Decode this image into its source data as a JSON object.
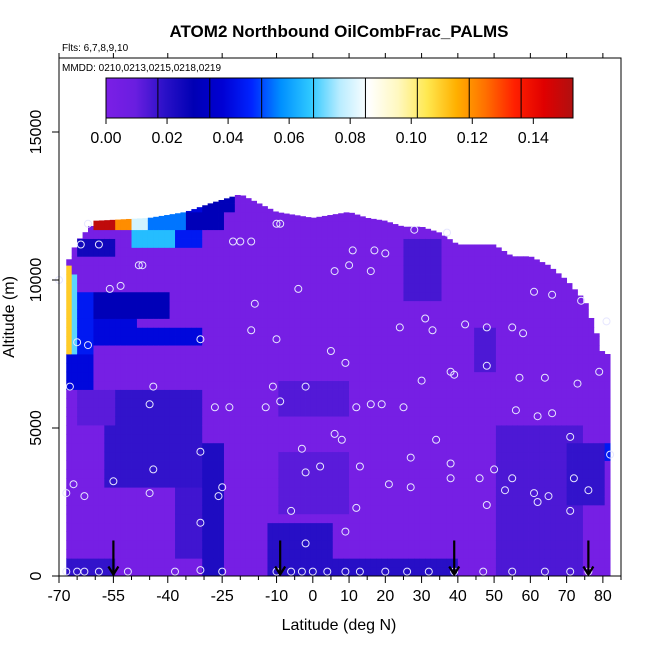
{
  "chart_data": {
    "type": "heatmap",
    "title": "ATOM2 Northbound OilCombFrac_PALMS",
    "flights_label": "Flts: 6,7,8,9,10",
    "dates_label": "MMDD: 0210,0213,0215,0218,0219",
    "xlabel": "Latitude (deg N)",
    "ylabel": "Altitude (m)",
    "xlim": [
      -70,
      85
    ],
    "ylim": [
      0,
      17500
    ],
    "x_ticks": [
      -70,
      -55,
      -40,
      -25,
      -10,
      0,
      10,
      20,
      30,
      40,
      50,
      60,
      70,
      80
    ],
    "x_tick_labels": [
      "-70",
      "-55",
      "-40",
      "-25",
      "-10",
      "0",
      "10",
      "20",
      "30",
      "40",
      "50",
      "60",
      "70",
      "80"
    ],
    "x_minor_ticks": [
      -65,
      -60,
      -50,
      -45,
      -35,
      -30,
      -20,
      -15,
      -5,
      5,
      15,
      25,
      35,
      45,
      55,
      65,
      75,
      85
    ],
    "y_ticks": [
      0,
      5000,
      10000,
      15000
    ],
    "y_tick_labels": [
      "0",
      "5000",
      "10000",
      "15000"
    ],
    "colorbar": {
      "range": [
        0,
        0.153
      ],
      "ticks": [
        0.0,
        0.02,
        0.04,
        0.06,
        0.08,
        0.1,
        0.12,
        0.14
      ],
      "tick_labels": [
        "0.00",
        "0.02",
        "0.04",
        "0.06",
        "0.08",
        "0.10",
        "0.12",
        "0.14"
      ],
      "colors": [
        "#7b1fe6",
        "#6a1ee0",
        "#2b11c8",
        "#0000b4",
        "#0000d4",
        "#0024ff",
        "#0090ff",
        "#2ec8ff",
        "#b8ecff",
        "#ffffff",
        "#fff8c0",
        "#ffe850",
        "#ffb000",
        "#ff7000",
        "#ff2000",
        "#e00000",
        "#b01010"
      ],
      "divider_values": [
        0.017,
        0.034,
        0.051,
        0.068,
        0.085,
        0.102,
        0.119,
        0.136
      ]
    },
    "grid": false,
    "coverage_top_alt": [
      [
        -68,
        10500
      ],
      [
        -65,
        11300
      ],
      [
        -60,
        12000
      ],
      [
        -45,
        12100
      ],
      [
        -35,
        12300
      ],
      [
        -28,
        12600
      ],
      [
        -20,
        12900
      ],
      [
        -10,
        12300
      ],
      [
        0,
        12100
      ],
      [
        10,
        12300
      ],
      [
        15,
        12100
      ],
      [
        20,
        12000
      ],
      [
        25,
        11800
      ],
      [
        30,
        11800
      ],
      [
        35,
        11600
      ],
      [
        40,
        11200
      ],
      [
        45,
        11200
      ],
      [
        50,
        11200
      ],
      [
        55,
        10800
      ],
      [
        60,
        10800
      ],
      [
        65,
        10500
      ],
      [
        70,
        10000
      ],
      [
        75,
        9300
      ],
      [
        78,
        8300
      ],
      [
        80,
        7500
      ]
    ],
    "background_value": 0.003,
    "features": [
      {
        "x": [
          -68,
          -67
        ],
        "y": [
          7000,
          10500
        ],
        "value": 0.11
      },
      {
        "x": [
          -67,
          -65
        ],
        "y": [
          7500,
          10200
        ],
        "value": 0.07
      },
      {
        "x": [
          -65,
          -60
        ],
        "y": [
          7600,
          9500
        ],
        "value": 0.045
      },
      {
        "x": [
          -68,
          -60
        ],
        "y": [
          6400,
          7600
        ],
        "value": 0.04
      },
      {
        "x": [
          -60,
          -48
        ],
        "y": [
          7700,
          8600
        ],
        "value": 0.04
      },
      {
        "x": [
          -60,
          -40
        ],
        "y": [
          8600,
          9700
        ],
        "value": 0.03
      },
      {
        "x": [
          -48,
          -30
        ],
        "y": [
          7700,
          8400
        ],
        "value": 0.04
      },
      {
        "x": [
          -65,
          -55
        ],
        "y": [
          10700,
          11300
        ],
        "value": 0.025
      },
      {
        "x": [
          -60,
          -55
        ],
        "y": [
          11800,
          12300
        ],
        "value": 0.15
      },
      {
        "x": [
          -55,
          -50
        ],
        "y": [
          11800,
          12300
        ],
        "value": 0.12
      },
      {
        "x": [
          -50,
          -45
        ],
        "y": [
          11800,
          12300
        ],
        "value": 0.08
      },
      {
        "x": [
          -45,
          -35
        ],
        "y": [
          11800,
          12300
        ],
        "value": 0.055
      },
      {
        "x": [
          -35,
          -25
        ],
        "y": [
          11800,
          12300
        ],
        "value": 0.03
      },
      {
        "x": [
          -50,
          -38
        ],
        "y": [
          11100,
          11700
        ],
        "value": 0.065
      },
      {
        "x": [
          -38,
          -30
        ],
        "y": [
          11100,
          11700
        ],
        "value": 0.045
      },
      {
        "x": [
          -40,
          -30
        ],
        "y": [
          12300,
          12600
        ],
        "value": 0.04
      },
      {
        "x": [
          -30,
          -22
        ],
        "y": [
          12400,
          12800
        ],
        "value": 0.03
      },
      {
        "x": [
          -58,
          -30
        ],
        "y": [
          3000,
          6400
        ],
        "value": 0.018
      },
      {
        "x": [
          -38,
          -30
        ],
        "y": [
          500,
          3000
        ],
        "value": 0.016
      },
      {
        "x": [
          -30,
          -25
        ],
        "y": [
          0,
          4500
        ],
        "value": 0.022
      },
      {
        "x": [
          -70,
          -55
        ],
        "y": [
          0,
          600
        ],
        "value": 0.018
      },
      {
        "x": [
          -12,
          5
        ],
        "y": [
          0,
          1800
        ],
        "value": 0.02
      },
      {
        "x": [
          5,
          40
        ],
        "y": [
          0,
          700
        ],
        "value": 0.02
      },
      {
        "x": [
          -10,
          10
        ],
        "y": [
          2000,
          4200
        ],
        "value": 0.012
      },
      {
        "x": [
          25,
          35
        ],
        "y": [
          9300,
          11500
        ],
        "value": 0.015
      },
      {
        "x": [
          45,
          50
        ],
        "y": [
          7000,
          8500
        ],
        "value": 0.014
      },
      {
        "x": [
          50,
          75
        ],
        "y": [
          0,
          5000
        ],
        "value": 0.014
      },
      {
        "x": [
          -10,
          10
        ],
        "y": [
          5500,
          6500
        ],
        "value": 0.013
      },
      {
        "x": [
          -65,
          -55
        ],
        "y": [
          5000,
          6400
        ],
        "value": 0.012
      },
      {
        "x": [
          70,
          80
        ],
        "y": [
          2500,
          4500
        ],
        "value": 0.018
      },
      {
        "x": [
          80,
          82
        ],
        "y": [
          3800,
          4600
        ],
        "value": 0.045
      }
    ],
    "sample_points": [
      [
        -68,
        150
      ],
      [
        -65,
        150
      ],
      [
        -63,
        150
      ],
      [
        -59,
        150
      ],
      [
        -51,
        150
      ],
      [
        -38,
        150
      ],
      [
        -31,
        200
      ],
      [
        -31,
        1800
      ],
      [
        -25,
        150
      ],
      [
        -10,
        150
      ],
      [
        -6,
        150
      ],
      [
        -3,
        150
      ],
      [
        0,
        150
      ],
      [
        4,
        150
      ],
      [
        9,
        150
      ],
      [
        13,
        150
      ],
      [
        20,
        150
      ],
      [
        26,
        150
      ],
      [
        32,
        150
      ],
      [
        39,
        150
      ],
      [
        47,
        150
      ],
      [
        55,
        150
      ],
      [
        64,
        150
      ],
      [
        71,
        150
      ],
      [
        76,
        150
      ],
      [
        -68,
        2800
      ],
      [
        -66,
        3100
      ],
      [
        -63,
        2700
      ],
      [
        -55,
        3200
      ],
      [
        -45,
        2800
      ],
      [
        -44,
        3600
      ],
      [
        -45,
        5800
      ],
      [
        -44,
        6400
      ],
      [
        -31,
        4200
      ],
      [
        -25,
        3000
      ],
      [
        -26,
        2700
      ],
      [
        -6,
        2200
      ],
      [
        -3,
        4300
      ],
      [
        -2,
        3500
      ],
      [
        2,
        3700
      ],
      [
        6,
        4800
      ],
      [
        8,
        4600
      ],
      [
        9,
        1500
      ],
      [
        12,
        2300
      ],
      [
        13,
        3700
      ],
      [
        16,
        5800
      ],
      [
        21,
        3100
      ],
      [
        27,
        3000
      ],
      [
        27,
        4000
      ],
      [
        38,
        3800
      ],
      [
        38,
        3300
      ],
      [
        46,
        3300
      ],
      [
        48,
        2400
      ],
      [
        50,
        3600
      ],
      [
        53,
        2900
      ],
      [
        55,
        3300
      ],
      [
        61,
        2800
      ],
      [
        62,
        2500
      ],
      [
        65,
        2700
      ],
      [
        71,
        2200
      ],
      [
        72,
        3300
      ],
      [
        76,
        2900
      ],
      [
        82,
        4100
      ],
      [
        -27,
        5700
      ],
      [
        -23,
        5700
      ],
      [
        -13,
        5700
      ],
      [
        -11,
        6400
      ],
      [
        -9,
        5900
      ],
      [
        -2,
        1100
      ],
      [
        12,
        5700
      ],
      [
        19,
        5800
      ],
      [
        25,
        5700
      ],
      [
        30,
        6600
      ],
      [
        38,
        6900
      ],
      [
        39,
        6800
      ],
      [
        34,
        4600
      ],
      [
        48,
        7100
      ],
      [
        56,
        5600
      ],
      [
        57,
        6700
      ],
      [
        62,
        5400
      ],
      [
        64,
        6700
      ],
      [
        66,
        5500
      ],
      [
        71,
        4700
      ],
      [
        73,
        6500
      ],
      [
        79,
        6900
      ],
      [
        -67,
        6400
      ],
      [
        -65,
        7900
      ],
      [
        -62,
        7800
      ],
      [
        -31,
        8000
      ],
      [
        -17,
        8300
      ],
      [
        -10,
        8000
      ],
      [
        -4,
        9700
      ],
      [
        -2,
        6400
      ],
      [
        5,
        7600
      ],
      [
        9,
        7200
      ],
      [
        6,
        10300
      ],
      [
        10,
        10500
      ],
      [
        11,
        11000
      ],
      [
        16,
        10300
      ],
      [
        17,
        11000
      ],
      [
        20,
        10900
      ],
      [
        24,
        8400
      ],
      [
        28,
        11700
      ],
      [
        31,
        8700
      ],
      [
        33,
        8300
      ],
      [
        37,
        11600
      ],
      [
        42,
        8500
      ],
      [
        48,
        8400
      ],
      [
        55,
        8400
      ],
      [
        58,
        8200
      ],
      [
        61,
        9600
      ],
      [
        66,
        9500
      ],
      [
        74,
        9300
      ],
      [
        81,
        8600
      ],
      [
        -48,
        10500
      ],
      [
        -47,
        10500
      ],
      [
        -56,
        9700
      ],
      [
        -53,
        9800
      ],
      [
        -16,
        9200
      ],
      [
        -22,
        11300
      ],
      [
        -20,
        11300
      ],
      [
        -17,
        11300
      ],
      [
        -10,
        11900
      ],
      [
        -9,
        11900
      ],
      [
        -62,
        11900
      ],
      [
        -64,
        11200
      ],
      [
        -70,
        10000
      ],
      [
        -59,
        11200
      ]
    ],
    "flight_markers_x": [
      -55,
      -9,
      39,
      76
    ]
  }
}
